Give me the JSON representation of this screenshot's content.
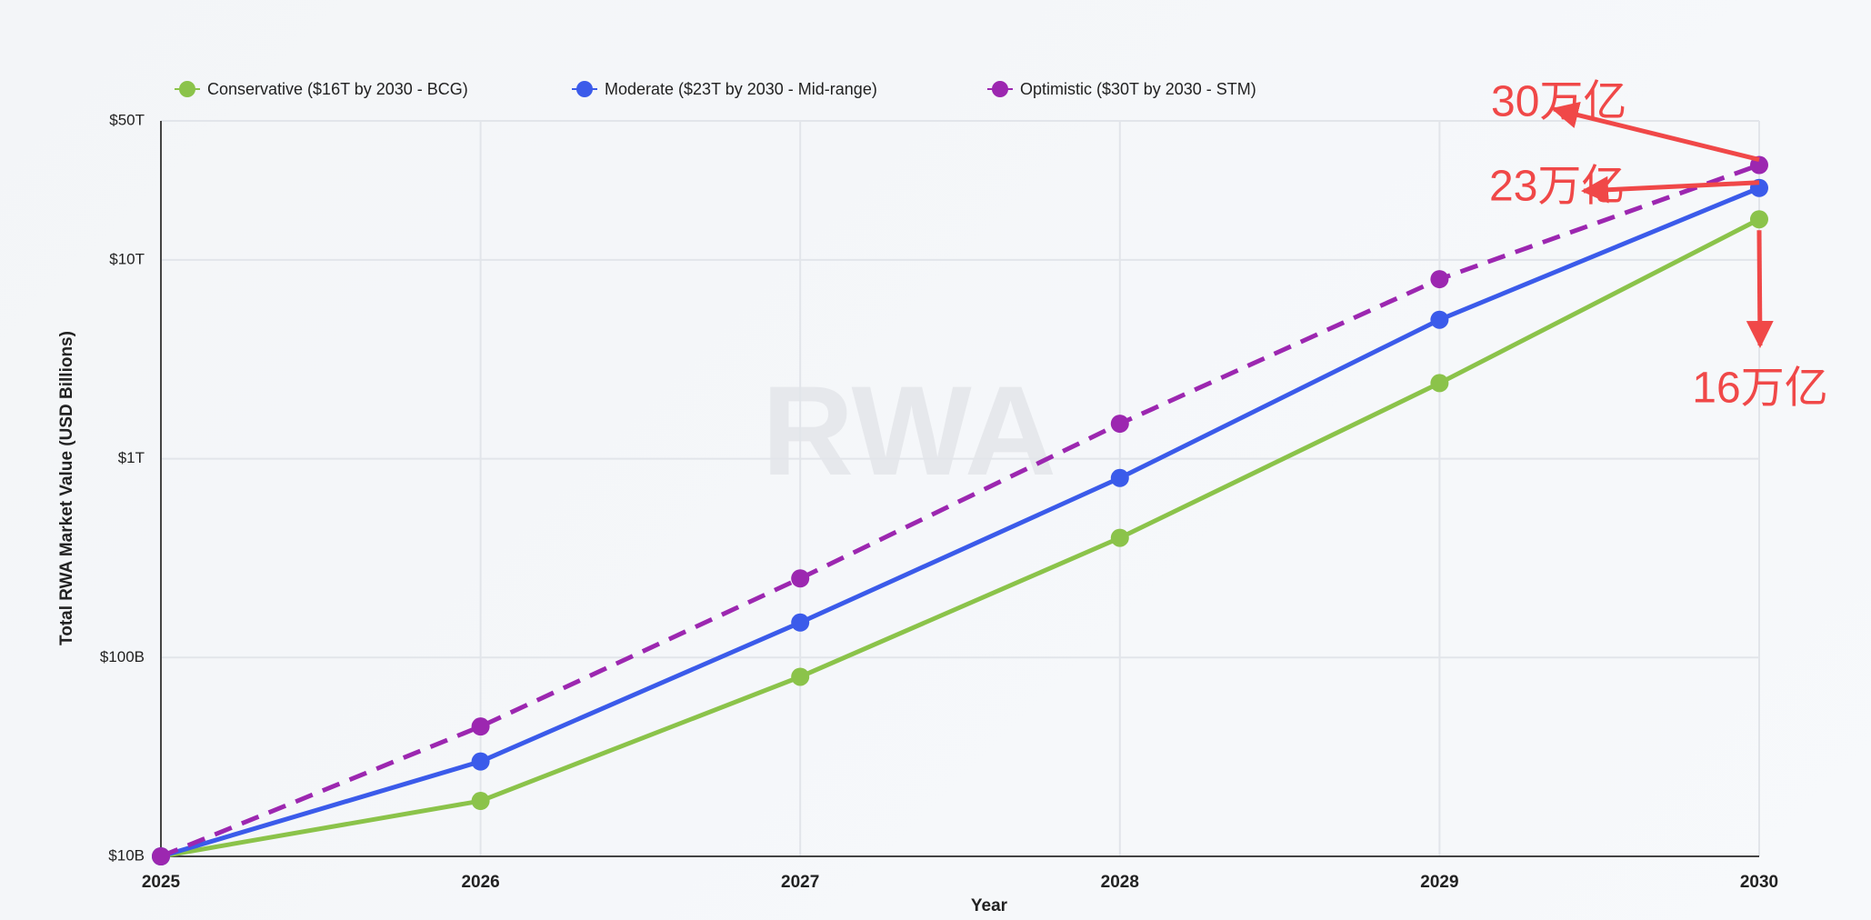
{
  "chart_data": {
    "type": "line",
    "x_label": "Year",
    "y_label": "Total RWA Market Value (USD Billions)",
    "x": [
      2025,
      2026,
      2027,
      2028,
      2029,
      2030
    ],
    "xlim": [
      2025,
      2030
    ],
    "xticks": [
      2025,
      2026,
      2027,
      2028,
      2029,
      2030
    ],
    "ylim": [
      10,
      50000
    ],
    "yticks": [
      {
        "value": 10,
        "label": "$10B"
      },
      {
        "value": 100,
        "label": "$100B"
      },
      {
        "value": 1000,
        "label": "$1T"
      },
      {
        "value": 10000,
        "label": "$10T"
      },
      {
        "value": 50000,
        "label": "$50T"
      }
    ],
    "y_scale": "log",
    "grid": true,
    "legend": "top-left",
    "series": [
      {
        "name": "Conservative ($16T by 2030 - BCG)",
        "color": "#8bc34a",
        "dash": false,
        "values": [
          10,
          19,
          80,
          400,
          2400,
          16000
        ]
      },
      {
        "name": "Moderate ($23T by 2030 - Mid-range)",
        "color": "#3b5bea",
        "dash": false,
        "values": [
          10,
          30,
          150,
          800,
          5000,
          23000
        ]
      },
      {
        "name": "Optimistic ($30T by 2030 - STM)",
        "color": "#9c27b0",
        "dash": true,
        "values": [
          10,
          45,
          250,
          1500,
          8000,
          30000
        ]
      }
    ],
    "annotations": [
      {
        "text": "30万亿",
        "series": 2
      },
      {
        "text": "23万亿",
        "series": 1
      },
      {
        "text": "16万亿",
        "series": 0
      }
    ],
    "watermark": "RWA"
  }
}
